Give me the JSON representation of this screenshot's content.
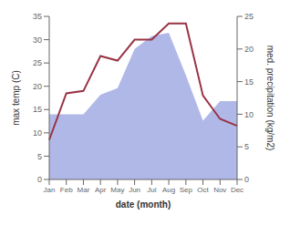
{
  "chart_data": {
    "type": "line",
    "xlabel": "date (month)",
    "ylabel": "max temp (C)",
    "y2label": "med. precipitation (kg/m2)",
    "categories": [
      "Jan",
      "Feb",
      "Mar",
      "Apr",
      "May",
      "Jun",
      "Jul",
      "Aug",
      "Sep",
      "Oct",
      "Nov",
      "Dec"
    ],
    "series": [
      {
        "type": "area",
        "axis": "y2",
        "color": "#b0b8e8",
        "values": [
          10.0,
          10.0,
          10.0,
          13.0,
          14.0,
          20.0,
          22.0,
          22.5,
          16.0,
          9.0,
          12.0,
          12.0
        ]
      },
      {
        "type": "line",
        "color": "#993344",
        "values": [
          8.5,
          18.5,
          19.0,
          26.5,
          25.5,
          30.0,
          30.0,
          33.5,
          33.5,
          18.0,
          13.0,
          11.5
        ]
      }
    ],
    "ylim": [
      0,
      35
    ],
    "yticks": [
      0,
      5,
      10,
      15,
      20,
      25,
      30,
      35
    ],
    "y2lim": [
      0,
      25
    ],
    "y2ticks": [
      0,
      5,
      10,
      15,
      20,
      25
    ],
    "grid": false
  }
}
